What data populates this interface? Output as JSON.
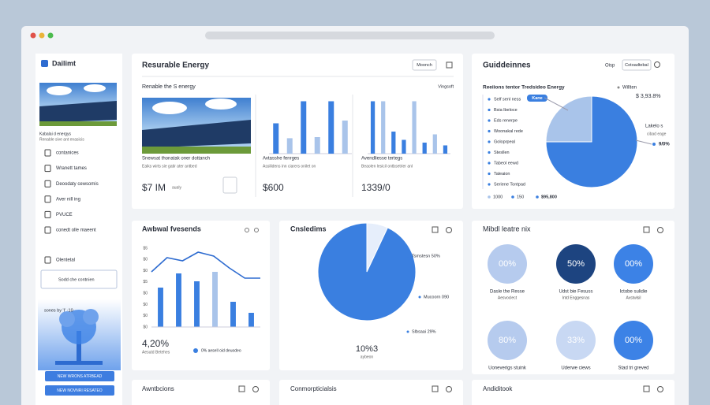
{
  "sidebar": {
    "logo": "Dailimt",
    "caption": [
      "Kabalai d energys",
      "Renable sive ant enasicis"
    ],
    "items": [
      "contanices",
      "Wranett tames",
      "Deoodaty cewsomis",
      "Aver nill ing",
      "PVUCE",
      "conedt olle maeent"
    ],
    "section": "Olentetal",
    "active": "Sodd che contnien",
    "footer": "sones by 'I' ·10",
    "buttons": [
      "NEW WRONS ATRBEAD",
      "NEW NOVNRI RESATEO"
    ]
  },
  "energy": {
    "title": "Resurable Energy",
    "button": "Moonch",
    "subtitle": "Renable the S energy",
    "link": "Vingsoft",
    "cards": [
      {
        "title": "Snewsat thonatak oner dottanch",
        "text": "Eaiks wirts sie gatir ater antbed",
        "value": "$7 IM",
        "unit": "aualy"
      },
      {
        "title": "Avtasshe fenrges",
        "text": "Assilidens inn ciarers onilet on",
        "value": "$600",
        "bars": [
          55,
          28,
          95,
          30,
          95,
          60
        ],
        "bar_colors": [
          "#3a7fe0",
          "#a9c4ea",
          "#3a7fe0",
          "#a9c4ea",
          "#3a7fe0",
          "#a9c4ea"
        ]
      },
      {
        "title": "Avendliesse tertegs",
        "text": "Beaolen lesicil ontbsetrier anl",
        "value": "1339/0",
        "bars": [
          95,
          95,
          40,
          25,
          95,
          20,
          35,
          15
        ],
        "bar_colors": [
          "#3a7fe0",
          "#a9c4ea",
          "#3a7fe0",
          "#3a7fe0",
          "#a9c4ea",
          "#3a7fe0",
          "#a9c4ea",
          "#3a7fe0"
        ]
      }
    ]
  },
  "guidelines": {
    "title": "Guiddeinnes",
    "menu": "Oisp",
    "button": "Cotoadtebal",
    "legend_title": "Reeiions tentor Tredsideo Energy",
    "legend_note": "Willten",
    "total": "$ 3,93.8%",
    "pill": "Kane",
    "items": [
      "Self senl ness",
      "Bsia lbeloce",
      "Eds renerpe",
      "Woonakal rede",
      "Goloprpeal",
      "Stesllen",
      "Tabeol eewd",
      "Taleaion",
      "Seriene Tontpad"
    ],
    "side": [
      "Lakelo s",
      "cibad eage",
      "9/0%"
    ],
    "foot": [
      "1000",
      "150",
      "$95,800"
    ],
    "pie": [
      25,
      75
    ],
    "pie_colors": [
      "#a9c4ea",
      "#3a7fe0"
    ]
  },
  "trends": {
    "title": "Awbwal fvesends",
    "ylabels": [
      "$5",
      "$0",
      "$0",
      "$5",
      "$0",
      "$0",
      "$0",
      "$0"
    ],
    "bars": [
      50,
      68,
      58,
      70,
      32,
      18
    ],
    "bar_colors": [
      "#3a7fe0",
      "#3a7fe0",
      "#3a7fe0",
      "#a9c4ea",
      "#3a7fe0",
      "#3a7fe0"
    ],
    "line": [
      70,
      88,
      84,
      95,
      90,
      75,
      62,
      62
    ],
    "ylim": [
      0,
      100
    ],
    "value": "4,20%",
    "caption": "Aesutd  Betehes",
    "legend": "0% aesell oid deuodeo"
  },
  "conditions": {
    "title": "Cnsledims",
    "pie": [
      7,
      93
    ],
    "pie_colors": [
      "#e6eefb",
      "#3a7fe0"
    ],
    "labels": [
      "Tsmstesn 50%",
      "Mucoorn 090",
      "Slbsaai 29%"
    ],
    "value": "10%3",
    "caption": "aybeon"
  },
  "mix": {
    "title": "Mibdl leatre nix",
    "rings": [
      {
        "label": "00%",
        "color": "#b6cbee",
        "caption": [
          "Dasle the Resse",
          "Aesvoclect"
        ]
      },
      {
        "label": "50%",
        "color": "#1d4480",
        "caption": [
          "Udst bie Fesuss",
          "Intd Enggesnas"
        ]
      },
      {
        "label": "00%",
        "color": "#3c82e6",
        "caption": [
          "Ictobe sulidie",
          "Avstwlsil"
        ]
      },
      {
        "label": "80%",
        "color": "#b6cbee",
        "caption": [
          "Uoneverigs stuink"
        ]
      },
      {
        "label": "33%",
        "color": "#c8d8f3",
        "caption": [
          "Uderwe ciews"
        ]
      },
      {
        "label": "00%",
        "color": "#3c82e6",
        "caption": [
          "Stad tri greved"
        ]
      }
    ]
  },
  "bottom": [
    "Awntbcions",
    "Conmorpticialsis",
    "Andiditook"
  ]
}
